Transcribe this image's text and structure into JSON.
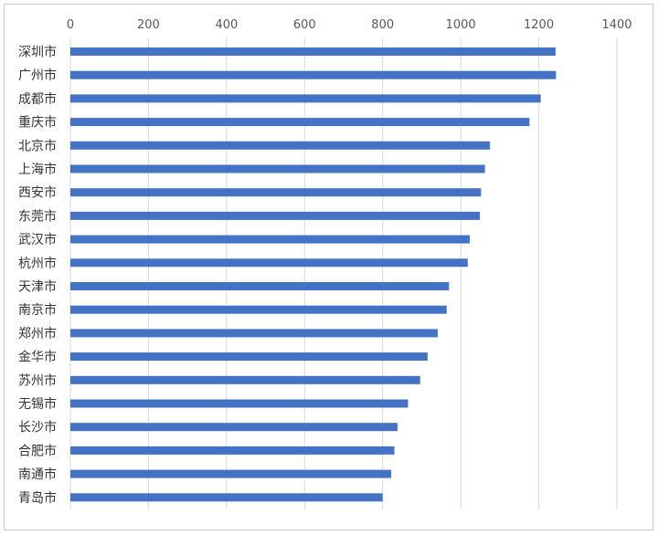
{
  "chart_data": {
    "type": "bar",
    "orientation": "horizontal",
    "title": "",
    "xlabel": "",
    "ylabel": "",
    "categories": [
      "深圳市",
      "广州市",
      "成都市",
      "重庆市",
      "北京市",
      "上海市",
      "西安市",
      "东莞市",
      "武汉市",
      "杭州市",
      "天津市",
      "南京市",
      "郑州市",
      "金华市",
      "苏州市",
      "无锡市",
      "长沙市",
      "合肥市",
      "南通市",
      "青岛市"
    ],
    "values": [
      1243,
      1244,
      1205,
      1176,
      1075,
      1062,
      1052,
      1049,
      1023,
      1018,
      970,
      964,
      941,
      915,
      896,
      865,
      838,
      830,
      822,
      800
    ],
    "xlim": [
      0,
      1400
    ],
    "xticks": [
      0,
      200,
      400,
      600,
      800,
      1000,
      1200,
      1400
    ],
    "xtick_labels": [
      "0",
      "200",
      "400",
      "600",
      "800",
      "1000",
      "1200",
      "1400"
    ],
    "axis_position": "top",
    "grid": "vertical",
    "legend": "none",
    "bar_color": "#4472C4"
  }
}
